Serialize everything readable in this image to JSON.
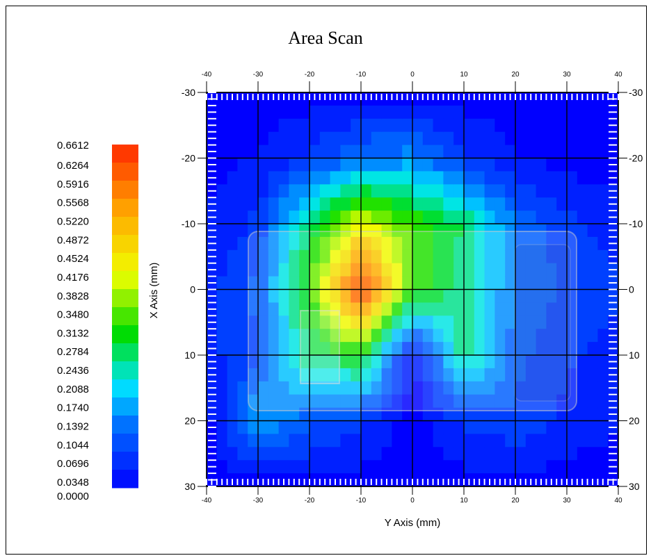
{
  "chart_data": {
    "type": "heatmap",
    "title": "Area Scan",
    "xlabel": "Y Axis (mm)",
    "ylabel": "X Axis (mm)",
    "x_range": [
      -40,
      40
    ],
    "y_range": [
      -30,
      30
    ],
    "x_ticks_top": [
      "-40",
      "-30",
      "-20",
      "-10",
      "0",
      "10",
      "20",
      "30",
      "40"
    ],
    "x_ticks_bottom": [
      "-40",
      "-30",
      "-20",
      "-10",
      "0",
      "10",
      "20",
      "30",
      "40"
    ],
    "y_ticks_left": [
      "-30",
      "-20",
      "-10",
      "0",
      "10",
      "20",
      "30"
    ],
    "y_ticks_right": [
      "-30",
      "-20",
      "-10",
      "0",
      "10",
      "20",
      "30"
    ],
    "x": [
      -40,
      -30,
      -20,
      -10,
      0,
      10,
      20,
      30,
      40
    ],
    "y": [
      -30,
      -20,
      -10,
      0,
      10,
      20,
      30
    ],
    "z": [
      [
        0.0,
        0.0,
        0.0,
        0.0,
        0.0,
        0.0,
        0.0,
        0.0,
        0.0
      ],
      [
        0.0,
        0.02,
        0.06,
        0.12,
        0.14,
        0.06,
        0.02,
        0.0,
        0.0
      ],
      [
        0.02,
        0.06,
        0.26,
        0.42,
        0.32,
        0.26,
        0.12,
        0.06,
        0.04
      ],
      [
        0.04,
        0.1,
        0.32,
        0.66,
        0.32,
        0.24,
        0.12,
        0.08,
        0.06
      ],
      [
        0.04,
        0.08,
        0.26,
        0.3,
        0.0,
        0.26,
        0.1,
        0.06,
        0.04
      ],
      [
        0.0,
        0.16,
        0.1,
        0.06,
        0.0,
        0.06,
        0.08,
        0.04,
        0.02
      ],
      [
        0.0,
        0.0,
        0.0,
        0.0,
        0.0,
        0.0,
        0.0,
        0.0,
        0.0
      ]
    ],
    "colorbar": {
      "labels": [
        "0.6612",
        "0.6264",
        "0.5916",
        "0.5568",
        "0.5220",
        "0.4872",
        "0.4524",
        "0.4176",
        "0.3828",
        "0.3480",
        "0.3132",
        "0.2784",
        "0.2436",
        "0.2088",
        "0.1740",
        "0.1392",
        "0.1044",
        "0.0696",
        "0.0348",
        "0.0000"
      ],
      "min": 0.0,
      "max": 0.6612
    },
    "grid": true,
    "colorbar_placement": "left"
  }
}
